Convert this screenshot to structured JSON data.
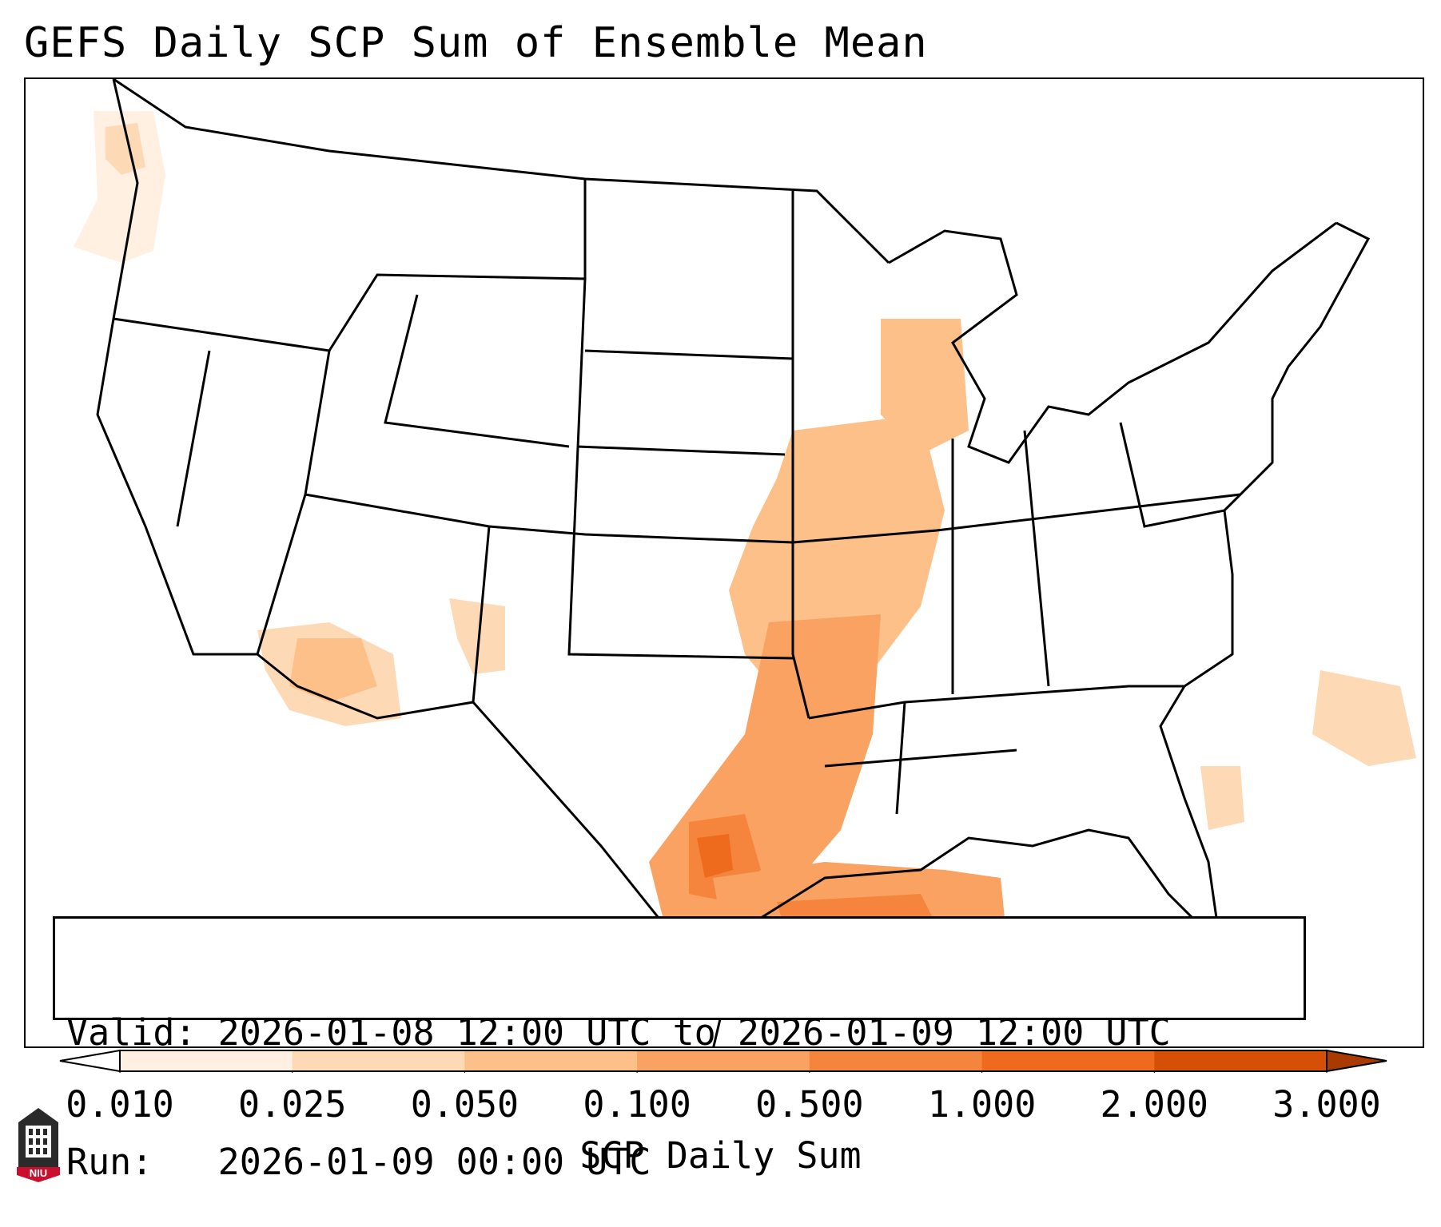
{
  "header": {
    "title": "GEFS Daily SCP Sum of Ensemble Mean"
  },
  "info": {
    "valid_line": "Valid: 2026-01-08 12:00 UTC to 2026-01-09 12:00 UTC",
    "run_line": "Run:   2026-01-09 00:00 UTC"
  },
  "colorbar": {
    "label": "SCP Daily Sum",
    "ticks": [
      "0.010",
      "0.025",
      "0.050",
      "0.100",
      "0.500",
      "1.000",
      "2.000",
      "3.000"
    ],
    "colors": [
      "#fff0e2",
      "#fdd9b5",
      "#fdc088",
      "#f9a262",
      "#f5843c",
      "#ee6a1c",
      "#d64f06"
    ],
    "under_color": "#ffffff",
    "over_color": "#a83a02"
  },
  "logo": {
    "text": "NIU",
    "icon": "niu-logo-icon"
  },
  "map": {
    "region": "Continental United States",
    "regions": [
      {
        "name": "mississippi-valley-band",
        "level": 0.1
      },
      {
        "name": "arkansas-louisiana-core",
        "level": 0.5
      },
      {
        "name": "east-texas-max",
        "level": 1.0
      },
      {
        "name": "gulf-of-mexico-band",
        "level": 0.5
      },
      {
        "name": "arizona-area",
        "level": 0.05
      },
      {
        "name": "new-mexico-area",
        "level": 0.025
      },
      {
        "name": "pacific-northwest-coast",
        "level": 0.025
      },
      {
        "name": "western-atlantic-area",
        "level": 0.025
      },
      {
        "name": "lake-michigan-area",
        "level": 0.1
      }
    ]
  }
}
